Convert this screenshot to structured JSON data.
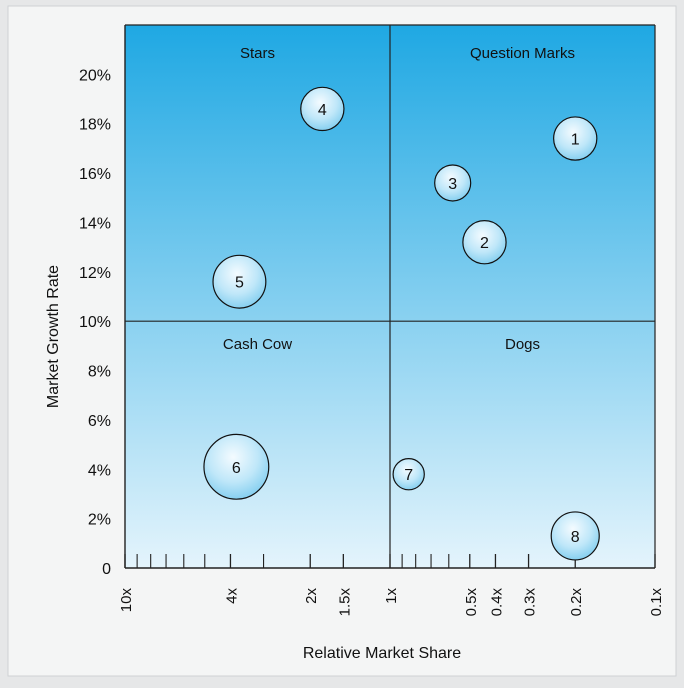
{
  "chart_data": {
    "type": "scatter",
    "subtype": "bubble",
    "title": "",
    "xlabel": "Relative Market Share",
    "ylabel": "Market Growth Rate",
    "x_scale": "log",
    "x_reversed": true,
    "xlim": [
      10,
      0.1
    ],
    "ylim": [
      0,
      22
    ],
    "x_ticks": [
      {
        "value": 10,
        "label": "10x"
      },
      {
        "value": 4,
        "label": "4x"
      },
      {
        "value": 2,
        "label": "2x"
      },
      {
        "value": 1.5,
        "label": "1.5x"
      },
      {
        "value": 1,
        "label": "1x"
      },
      {
        "value": 0.5,
        "label": "0.5x"
      },
      {
        "value": 0.4,
        "label": "0.4x"
      },
      {
        "value": 0.3,
        "label": "0.3x"
      },
      {
        "value": 0.2,
        "label": "0.2x"
      },
      {
        "value": 0.1,
        "label": "0.1x"
      }
    ],
    "x_minor_ticks": [
      9,
      8,
      7,
      6,
      5,
      3,
      0.9,
      0.8,
      0.7,
      0.6
    ],
    "y_ticks": [
      {
        "value": 0,
        "label": "0"
      },
      {
        "value": 2,
        "label": "2%"
      },
      {
        "value": 4,
        "label": "4%"
      },
      {
        "value": 6,
        "label": "6%"
      },
      {
        "value": 8,
        "label": "8%"
      },
      {
        "value": 10,
        "label": "10%"
      },
      {
        "value": 12,
        "label": "12%"
      },
      {
        "value": 14,
        "label": "14%"
      },
      {
        "value": 16,
        "label": "16%"
      },
      {
        "value": 18,
        "label": "18%"
      },
      {
        "value": 20,
        "label": "20%"
      }
    ],
    "dividers": {
      "x": 1,
      "y": 10
    },
    "quadrants": [
      {
        "label": "Stars",
        "position": "top-left"
      },
      {
        "label": "Question Marks",
        "position": "top-right"
      },
      {
        "label": "Cash Cow",
        "position": "bottom-left"
      },
      {
        "label": "Dogs",
        "position": "bottom-right"
      }
    ],
    "points": [
      {
        "label": "1",
        "x": 0.2,
        "y": 17.4,
        "size": 0.9
      },
      {
        "label": "2",
        "x": 0.44,
        "y": 13.2,
        "size": 0.9
      },
      {
        "label": "3",
        "x": 0.58,
        "y": 15.6,
        "size": 0.75
      },
      {
        "label": "4",
        "x": 1.8,
        "y": 18.6,
        "size": 0.9
      },
      {
        "label": "5",
        "x": 3.7,
        "y": 11.6,
        "size": 1.1
      },
      {
        "label": "6",
        "x": 3.8,
        "y": 4.1,
        "size": 1.35
      },
      {
        "label": "7",
        "x": 0.85,
        "y": 3.8,
        "size": 0.65
      },
      {
        "label": "8",
        "x": 0.2,
        "y": 1.3,
        "size": 1.0
      }
    ],
    "colors": {
      "plot_top": "#1fa8e3",
      "plot_bottom": "#e4f4fc",
      "background": "#e6e7e8",
      "bubble_fill": "#8fd3f2",
      "bubble_stroke": "#111111",
      "axis": "#222222"
    }
  }
}
